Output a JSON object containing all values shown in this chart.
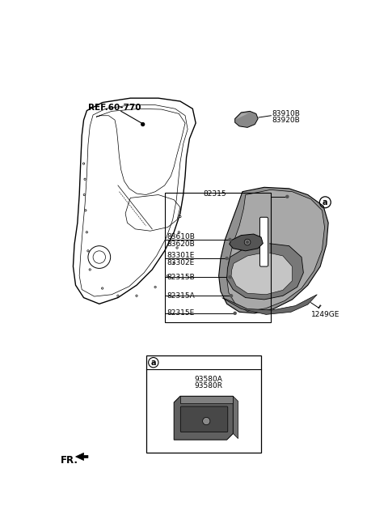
{
  "bg_color": "#ffffff",
  "fig_width": 4.8,
  "fig_height": 6.57,
  "dpi": 100,
  "labels": {
    "ref_60_770": "REF.60-770",
    "83910B": "83910B",
    "83920B": "83920B",
    "82315": "82315",
    "83610B": "83610B",
    "83620B": "83620B",
    "83301E": "83301E",
    "83302E": "83302E",
    "82315B": "82315B",
    "82315A": "82315A",
    "82315E": "82315E",
    "1249GE": "1249GE",
    "a_label": "a",
    "93580A": "93580A",
    "93580R": "93580R",
    "FR": "FR."
  },
  "colors": {
    "black": "#000000",
    "gray_panel": "#999999",
    "gray_mid": "#b0b0b0",
    "gray_light": "#cccccc",
    "gray_dark": "#707070",
    "bg": "#ffffff"
  }
}
